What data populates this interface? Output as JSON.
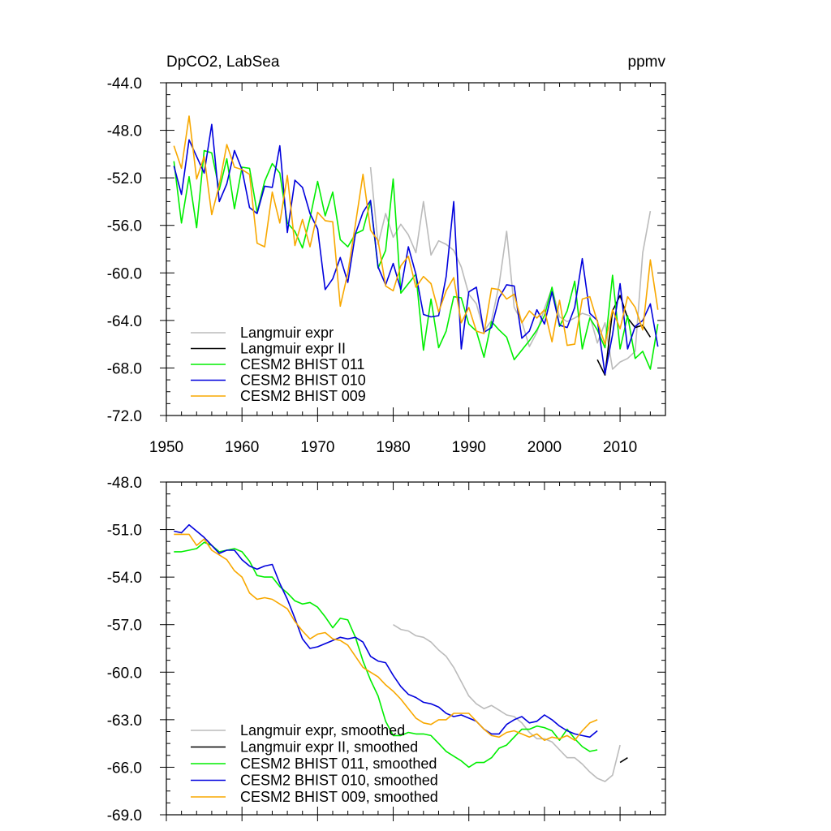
{
  "chart_data": [
    {
      "type": "line",
      "title": "DpCO2, LabSea",
      "units": "ppmv",
      "xlabel": "",
      "ylabel": "",
      "xlim": [
        1950,
        2016
      ],
      "ylim": [
        -72.0,
        -44.0
      ],
      "xticks": [
        1950,
        1960,
        1970,
        1980,
        1990,
        2000,
        2010
      ],
      "xticklabels": [
        "1950",
        "1960",
        "1970",
        "1980",
        "1990",
        "2000",
        "2010"
      ],
      "yticks": [
        -44,
        -48,
        -52,
        -56,
        -60,
        -64,
        -68,
        -72
      ],
      "yticklabels": [
        "-44.0",
        "-48.0",
        "-52.0",
        "-56.0",
        "-60.0",
        "-64.0",
        "-68.0",
        "-72.0"
      ],
      "grid": false,
      "legend": "bottom-left",
      "series": [
        {
          "name": "Langmuir expr",
          "color": "#bbbbbb",
          "x0": 1977,
          "values": [
            -51.1,
            -57.6,
            -55.0,
            -57.0,
            -55.9,
            -56.8,
            -58.3,
            -54.0,
            -58.5,
            -57.3,
            -57.6,
            -58.1,
            -59.5,
            -61.8,
            -62.6,
            -64.9,
            -64.0,
            -61.0,
            -56.5,
            -62.9,
            -64.1,
            -66.2,
            -65.0,
            -63.0,
            -61.3,
            -63.7,
            -64.1,
            -63.8,
            -63.4,
            -63.6,
            -65.9,
            -64.2,
            -68.1,
            -67.5,
            -67.2,
            -66.6,
            -58.3,
            -54.8
          ]
        },
        {
          "name": "Langmuir expr II",
          "color": "#000000",
          "x0": 2007,
          "values": [
            -67.3,
            -68.6,
            -63.2,
            -61.9,
            -63.8,
            -64.6,
            -64.4,
            -65.4
          ]
        },
        {
          "name": "CESM2 BHIST 011",
          "color": "#00ee00",
          "x0": 1951,
          "values": [
            -50.6,
            -55.8,
            -51.9,
            -56.2,
            -49.7,
            -49.9,
            -53.0,
            -50.4,
            -54.6,
            -51.1,
            -51.2,
            -54.9,
            -52.3,
            -50.8,
            -51.6,
            -55.8,
            -56.5,
            -57.9,
            -55.4,
            -52.3,
            -55.2,
            -53.2,
            -57.2,
            -57.8,
            -56.7,
            -56.4,
            -54.0,
            -59.6,
            -58.1,
            -52.1,
            -61.7,
            -60.9,
            -60.1,
            -66.5,
            -62.2,
            -66.3,
            -64.9,
            -62.0,
            -62.1,
            -64.3,
            -64.9,
            -67.1,
            -64.1,
            -64.8,
            -65.4,
            -67.3,
            -66.5,
            -65.7,
            -64.8,
            -63.6,
            -61.2,
            -64.5,
            -63.2,
            -60.7,
            -66.4,
            -63.8,
            -64.8,
            -66.3,
            -60.2,
            -66.4,
            -63.6,
            -67.2,
            -66.6,
            -68.1,
            -64.3
          ]
        },
        {
          "name": "CESM2 BHIST 010",
          "color": "#0000dd",
          "x0": 1951,
          "values": [
            -51.0,
            -53.4,
            -48.8,
            -50.2,
            -51.6,
            -47.5,
            -54.0,
            -52.5,
            -49.7,
            -51.3,
            -54.5,
            -55.0,
            -52.7,
            -52.8,
            -49.3,
            -56.6,
            -52.2,
            -52.8,
            -55.0,
            -56.3,
            -61.4,
            -60.5,
            -58.7,
            -60.8,
            -56.7,
            -54.9,
            -53.9,
            -59.5,
            -61.0,
            -59.2,
            -61.4,
            -57.8,
            -60.1,
            -63.5,
            -63.7,
            -63.6,
            -60.3,
            -54.0,
            -66.4,
            -61.6,
            -61.2,
            -65.0,
            -64.6,
            -62.1,
            -61.0,
            -61.1,
            -65.5,
            -64.9,
            -63.1,
            -64.3,
            -61.6,
            -64.4,
            -64.6,
            -62.9,
            -58.8,
            -63.4,
            -64.0,
            -68.5,
            -65.2,
            -60.9,
            -66.4,
            -64.5,
            -64.0,
            -62.6,
            -66.2
          ]
        },
        {
          "name": "CESM2 BHIST 009",
          "color": "#f8a800",
          "x0": 1951,
          "values": [
            -49.3,
            -51.2,
            -46.8,
            -52.1,
            -50.2,
            -55.1,
            -52.6,
            -49.2,
            -51.1,
            -51.3,
            -51.7,
            -57.5,
            -57.8,
            -53.2,
            -55.8,
            -51.8,
            -57.7,
            -55.5,
            -57.8,
            -54.9,
            -55.6,
            -55.7,
            -62.8,
            -60.0,
            -55.9,
            -51.7,
            -56.4,
            -57.3,
            -61.1,
            -61.5,
            -59.4,
            -58.6,
            -61.2,
            -60.3,
            -60.9,
            -63.3,
            -61.5,
            -60.4,
            -64.2,
            -62.9,
            -64.9,
            -65.1,
            -61.3,
            -61.4,
            -62.2,
            -61.8,
            -64.2,
            -63.2,
            -63.8,
            -63.1,
            -65.8,
            -62.3,
            -66.1,
            -66.0,
            -62.2,
            -62.0,
            -64.1,
            -66.0,
            -63.1,
            -64.7,
            -62.0,
            -62.9,
            -64.8,
            -58.9,
            -63.1
          ]
        }
      ]
    },
    {
      "type": "line",
      "title": "",
      "xlabel": "",
      "ylabel": "",
      "xlim": [
        1950,
        2016
      ],
      "ylim": [
        -69.0,
        -48.0
      ],
      "xticks": [
        1950,
        1960,
        1970,
        1980,
        1990,
        2000,
        2010
      ],
      "yticks": [
        -48,
        -51,
        -54,
        -57,
        -60,
        -63,
        -66,
        -69
      ],
      "yticklabels": [
        "-48.0",
        "-51.0",
        "-54.0",
        "-57.0",
        "-60.0",
        "-63.0",
        "-66.0",
        "-69.0"
      ],
      "grid": false,
      "legend": "bottom-left",
      "series": [
        {
          "name": "Langmuir expr, smoothed",
          "color": "#bbbbbb",
          "x0": 1980,
          "values": [
            -57.0,
            -57.3,
            -57.4,
            -57.7,
            -57.8,
            -58.1,
            -58.6,
            -59.0,
            -59.7,
            -60.6,
            -61.5,
            -62.0,
            -62.3,
            -62.1,
            -62.4,
            -62.7,
            -62.8,
            -63.2,
            -63.8,
            -64.2,
            -64.2,
            -64.4,
            -64.9,
            -65.4,
            -65.4,
            -65.8,
            -66.3,
            -66.7,
            -66.9,
            -66.5,
            -64.6
          ]
        },
        {
          "name": "Langmuir expr II, smoothed",
          "color": "#000000",
          "x0": 2010,
          "values": [
            -65.7,
            -65.4
          ]
        },
        {
          "name": "CESM2 BHIST 011, smoothed",
          "color": "#00ee00",
          "x0": 1951,
          "values": [
            -52.4,
            -52.4,
            -52.3,
            -52.2,
            -51.8,
            -52.0,
            -52.4,
            -52.3,
            -52.2,
            -52.4,
            -53.0,
            -53.9,
            -54.0,
            -54.0,
            -54.6,
            -55.0,
            -55.5,
            -55.7,
            -55.6,
            -55.9,
            -56.5,
            -57.2,
            -56.6,
            -56.7,
            -57.8,
            -59.3,
            -60.5,
            -61.5,
            -63.1,
            -64.0,
            -64.0,
            -63.8,
            -63.9,
            -63.9,
            -64.0,
            -64.5,
            -65.0,
            -65.3,
            -65.6,
            -66.0,
            -65.7,
            -65.7,
            -65.4,
            -64.8,
            -64.6,
            -64.1,
            -63.6,
            -63.6,
            -63.4,
            -63.5,
            -63.7,
            -64.3,
            -63.6,
            -64.2,
            -64.7,
            -65.0,
            -64.9
          ]
        },
        {
          "name": "CESM2 BHIST 010, smoothed",
          "color": "#0000dd",
          "x0": 1951,
          "values": [
            -51.1,
            -51.2,
            -50.7,
            -51.1,
            -51.5,
            -52.0,
            -52.5,
            -52.3,
            -52.3,
            -52.9,
            -53.3,
            -53.5,
            -53.3,
            -53.2,
            -54.4,
            -55.4,
            -56.6,
            -57.9,
            -58.5,
            -58.4,
            -58.2,
            -58.0,
            -57.8,
            -57.9,
            -57.8,
            -58.1,
            -59.0,
            -59.3,
            -59.4,
            -60.2,
            -60.9,
            -61.4,
            -61.6,
            -61.9,
            -62.0,
            -62.2,
            -62.6,
            -62.8,
            -62.7,
            -62.9,
            -63.1,
            -63.6,
            -63.9,
            -63.9,
            -63.3,
            -63.0,
            -62.8,
            -63.2,
            -63.1,
            -62.7,
            -63.0,
            -63.4,
            -63.7,
            -63.9,
            -64.0,
            -64.1,
            -63.7
          ]
        },
        {
          "name": "CESM2 BHIST 009, smoothed",
          "color": "#f8a800",
          "x0": 1951,
          "values": [
            -51.3,
            -51.3,
            -51.3,
            -52.0,
            -51.6,
            -52.3,
            -52.6,
            -52.9,
            -53.6,
            -54.0,
            -55.0,
            -55.4,
            -55.3,
            -55.4,
            -55.7,
            -56.0,
            -56.8,
            -57.4,
            -57.9,
            -57.6,
            -57.5,
            -57.9,
            -58.0,
            -58.3,
            -59.0,
            -59.7,
            -60.0,
            -60.3,
            -60.8,
            -61.2,
            -61.7,
            -62.3,
            -62.9,
            -63.2,
            -63.3,
            -63.0,
            -63.0,
            -62.6,
            -62.6,
            -62.6,
            -63.1,
            -63.6,
            -64.0,
            -64.1,
            -63.8,
            -63.7,
            -63.9,
            -64.1,
            -63.9,
            -64.3,
            -64.1,
            -64.2,
            -64.0,
            -64.3,
            -63.7,
            -63.2,
            -63.0
          ]
        }
      ]
    }
  ]
}
